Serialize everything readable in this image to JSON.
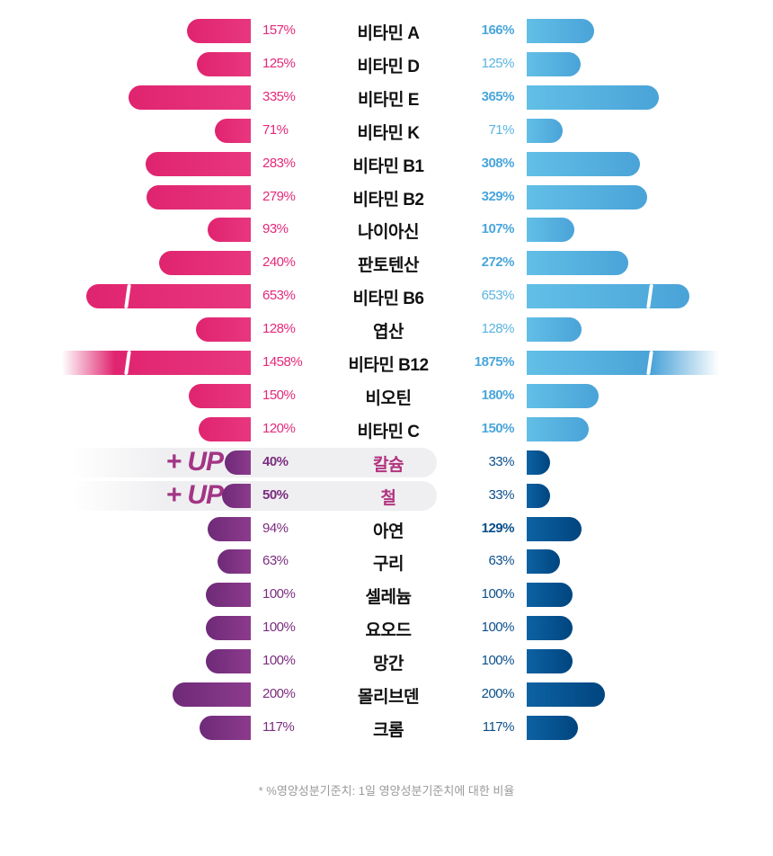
{
  "chart_data": {
    "type": "bar",
    "layout": "back-to-back horizontal",
    "categories": [
      "비타민 A",
      "비타민 D",
      "비타민 E",
      "비타민 K",
      "비타민 B1",
      "비타민 B2",
      "나이아신",
      "판토텐산",
      "비타민 B6",
      "엽산",
      "비타민 B12",
      "비오틴",
      "비타민 C",
      "칼슘",
      "철",
      "아연",
      "구리",
      "셀레늄",
      "요오드",
      "망간",
      "몰리브덴",
      "크롬"
    ],
    "group": [
      "vitamin",
      "vitamin",
      "vitamin",
      "vitamin",
      "vitamin",
      "vitamin",
      "vitamin",
      "vitamin",
      "vitamin",
      "vitamin",
      "vitamin",
      "vitamin",
      "vitamin",
      "mineral",
      "mineral",
      "mineral",
      "mineral",
      "mineral",
      "mineral",
      "mineral",
      "mineral",
      "mineral"
    ],
    "series": [
      {
        "name": "left",
        "values": [
          157,
          125,
          335,
          71,
          283,
          279,
          93,
          240,
          653,
          128,
          1458,
          150,
          120,
          40,
          50,
          94,
          63,
          100,
          100,
          100,
          200,
          117
        ],
        "labels": [
          "157%",
          "125%",
          "335%",
          "71%",
          "283%",
          "279%",
          "93%",
          "240%",
          "653%",
          "128%",
          "1458%",
          "150%",
          "120%",
          "40%",
          "50%",
          "94%",
          "63%",
          "100%",
          "100%",
          "100%",
          "200%",
          "117%"
        ]
      },
      {
        "name": "right",
        "values": [
          166,
          125,
          365,
          71,
          308,
          329,
          107,
          272,
          653,
          128,
          1875,
          180,
          150,
          33,
          33,
          129,
          63,
          100,
          100,
          100,
          200,
          117
        ],
        "labels": [
          "166%",
          "125%",
          "365%",
          "71%",
          "308%",
          "329%",
          "107%",
          "272%",
          "653%",
          "128%",
          "1875%",
          "180%",
          "150%",
          "33%",
          "33%",
          "129%",
          "63%",
          "100%",
          "100%",
          "100%",
          "200%",
          "117%"
        ]
      }
    ],
    "highlight_up": [
      13,
      14
    ],
    "up_label": "+ UP",
    "broken_bars": [
      8,
      10
    ],
    "faded_bars": [
      10
    ],
    "unit": "%"
  },
  "colors": {
    "vitamin_left": "#e4297a",
    "vitamin_right": "#5ab8e0",
    "mineral_left": "#7b2d7f",
    "mineral_right": "#0b5a99"
  },
  "footnote": "* %영양성분기준치: 1일 영양성분기준치에 대한 비율"
}
